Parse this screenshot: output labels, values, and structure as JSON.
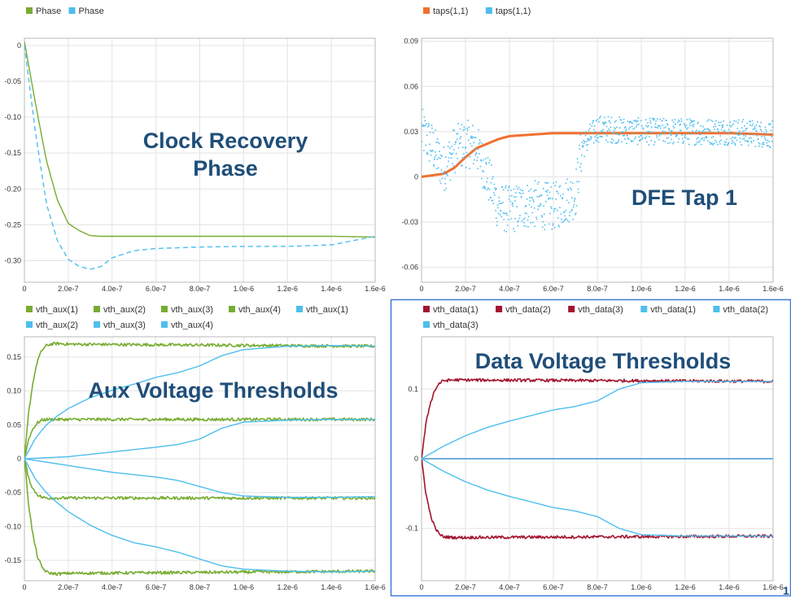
{
  "chart_data": [
    {
      "id": "phase",
      "type": "line",
      "title": "Clock Recovery\nPhase",
      "xlim": [
        0,
        1.6e-06
      ],
      "ylim": [
        -0.33,
        0.01
      ],
      "xticks": [
        0,
        2e-07,
        4e-07,
        6e-07,
        8e-07,
        1e-06,
        1.2e-06,
        1.4e-06,
        1.6e-06
      ],
      "xtick_labels": [
        "0",
        "2.0e-7",
        "4.0e-7",
        "6.0e-7",
        "8.0e-7",
        "1.0e-6",
        "1.2e-6",
        "1.4e-6",
        "1.6e-6"
      ],
      "yticks": [
        0,
        -0.05,
        -0.1,
        -0.15,
        -0.2,
        -0.25,
        -0.3
      ],
      "ytick_labels": [
        "0",
        "-0.05",
        "-0.10",
        "-0.15",
        "-0.20",
        "-0.25",
        "-0.30"
      ],
      "legend": [
        {
          "label": "Phase",
          "color": "#77ac30"
        },
        {
          "label": "Phase",
          "color": "#4dbeee"
        }
      ],
      "series": [
        {
          "name": "Phase",
          "color": "#77ac30",
          "style": "solid",
          "x": [
            0,
            5e-08,
            1e-07,
            1.5e-07,
            2e-07,
            2.5e-07,
            3e-07,
            3.5e-07,
            4e-07,
            6e-07,
            8e-07,
            1e-06,
            1.2e-06,
            1.4e-06,
            1.6e-06
          ],
          "y": [
            0.005,
            -0.08,
            -0.16,
            -0.215,
            -0.248,
            -0.258,
            -0.265,
            -0.266,
            -0.266,
            -0.266,
            -0.266,
            -0.266,
            -0.266,
            -0.266,
            -0.267
          ]
        },
        {
          "name": "Phase",
          "color": "#4dbeee",
          "style": "dashed",
          "x": [
            0,
            5e-08,
            1e-07,
            1.5e-07,
            2e-07,
            2.5e-07,
            3e-07,
            3.5e-07,
            4e-07,
            5e-07,
            6e-07,
            8e-07,
            1e-06,
            1.2e-06,
            1.4e-06,
            1.6e-06
          ],
          "y": [
            0.0,
            -0.12,
            -0.22,
            -0.272,
            -0.298,
            -0.308,
            -0.312,
            -0.308,
            -0.296,
            -0.286,
            -0.283,
            -0.281,
            -0.28,
            -0.28,
            -0.278,
            -0.266
          ]
        }
      ]
    },
    {
      "id": "dfe",
      "type": "scatter",
      "title": "DFE Tap 1",
      "xlim": [
        0,
        1.6e-06
      ],
      "ylim": [
        -0.07,
        0.092
      ],
      "xticks": [
        0,
        2e-07,
        4e-07,
        6e-07,
        8e-07,
        1e-06,
        1.2e-06,
        1.4e-06,
        1.6e-06
      ],
      "xtick_labels": [
        "0",
        "2.0e-7",
        "4.0e-7",
        "6.0e-7",
        "8.0e-7",
        "1.0e-6",
        "1.2e-6",
        "1.4e-6",
        "1.6e-6"
      ],
      "yticks": [
        0.09,
        0.06,
        0.03,
        0,
        -0.03,
        -0.06
      ],
      "ytick_labels": [
        "0.09",
        "0.06",
        "0.03",
        "0",
        "-0.03",
        "-0.06"
      ],
      "legend": [
        {
          "label": "taps(1,1)",
          "color": "#f07030"
        },
        {
          "label": "taps(1,1)",
          "color": "#4dbeee"
        }
      ],
      "series": [
        {
          "name": "taps(1,1)",
          "color": "#f07030",
          "style": "thick",
          "x": [
            0,
            5e-08,
            1e-07,
            1.5e-07,
            2e-07,
            2.5e-07,
            3e-07,
            3.5e-07,
            4e-07,
            5e-07,
            6e-07,
            7e-07,
            8e-07,
            1e-06,
            1.2e-06,
            1.4e-06,
            1.6e-06
          ],
          "y": [
            0.0,
            0.001,
            0.002,
            0.006,
            0.013,
            0.019,
            0.022,
            0.025,
            0.027,
            0.028,
            0.029,
            0.029,
            0.029,
            0.029,
            0.029,
            0.029,
            0.028
          ]
        },
        {
          "name": "taps(1,1)",
          "color": "#4dbeee",
          "style": "dots",
          "x": [
            0,
            5e-08,
            1e-07,
            1.5e-07,
            2e-07,
            2.5e-07,
            3e-07,
            3.5e-07,
            4e-07,
            5e-07,
            6e-07,
            7e-07,
            7.3e-07,
            8e-07,
            1e-06,
            1.2e-06,
            1.4e-06,
            1.6e-06
          ],
          "y": [
            0.03,
            0.02,
            0.005,
            0.018,
            0.022,
            0.02,
            0.0,
            -0.02,
            -0.022,
            -0.018,
            -0.02,
            -0.012,
            0.02,
            0.032,
            0.03,
            0.03,
            0.03,
            0.028
          ]
        }
      ]
    },
    {
      "id": "aux",
      "type": "line",
      "title": "Aux Voltage Thresholds",
      "xlim": [
        0,
        1.6e-06
      ],
      "ylim": [
        -0.18,
        0.18
      ],
      "xticks": [
        0,
        2e-07,
        4e-07,
        6e-07,
        8e-07,
        1e-06,
        1.2e-06,
        1.4e-06,
        1.6e-06
      ],
      "xtick_labels": [
        "0",
        "2.0e-7",
        "4.0e-7",
        "6.0e-7",
        "8.0e-7",
        "1.0e-6",
        "1.2e-6",
        "1.4e-6",
        "1.6e-6"
      ],
      "yticks": [
        0.15,
        0.1,
        0.05,
        0,
        -0.05,
        -0.1,
        -0.15
      ],
      "ytick_labels": [
        "0.15",
        "0.10",
        "0.05",
        "0",
        "-0.05",
        "-0.10",
        "-0.15"
      ],
      "legend": [
        {
          "label": "vth_aux(1)",
          "color": "#77ac30"
        },
        {
          "label": "vth_aux(2)",
          "color": "#77ac30"
        },
        {
          "label": "vth_aux(3)",
          "color": "#77ac30"
        },
        {
          "label": "vth_aux(4)",
          "color": "#77ac30"
        },
        {
          "label": "vth_aux(1)",
          "color": "#4dbeee"
        },
        {
          "label": "vth_aux(2)",
          "color": "#4dbeee"
        },
        {
          "label": "vth_aux(3)",
          "color": "#4dbeee"
        },
        {
          "label": "vth_aux(4)",
          "color": "#4dbeee"
        }
      ],
      "series": [
        {
          "name": "vth_aux(1)",
          "color": "#77ac30",
          "style": "noisy",
          "x": [
            0,
            2e-08,
            4e-08,
            6e-08,
            8e-08,
            1e-07,
            1.2e-07,
            1.5e-07,
            2e-07,
            1.6e-06
          ],
          "y": [
            0,
            0.07,
            0.115,
            0.145,
            0.16,
            0.167,
            0.169,
            0.17,
            0.169,
            0.166
          ]
        },
        {
          "name": "vth_aux(2)",
          "color": "#77ac30",
          "style": "noisy",
          "x": [
            0,
            2e-08,
            4e-08,
            6e-08,
            8e-08,
            1e-07,
            1.5e-07,
            1.6e-06
          ],
          "y": [
            0,
            0.03,
            0.045,
            0.053,
            0.057,
            0.058,
            0.058,
            0.058
          ]
        },
        {
          "name": "vth_aux(3)",
          "color": "#77ac30",
          "style": "noisy",
          "x": [
            0,
            2e-08,
            4e-08,
            6e-08,
            8e-08,
            1e-07,
            1.5e-07,
            1.6e-06
          ],
          "y": [
            0,
            -0.03,
            -0.045,
            -0.053,
            -0.057,
            -0.058,
            -0.058,
            -0.058
          ]
        },
        {
          "name": "vth_aux(4)",
          "color": "#77ac30",
          "style": "noisy",
          "x": [
            0,
            2e-08,
            4e-08,
            6e-08,
            8e-08,
            1e-07,
            1.2e-07,
            1.5e-07,
            2e-07,
            1.6e-06
          ],
          "y": [
            0,
            -0.07,
            -0.115,
            -0.145,
            -0.16,
            -0.167,
            -0.169,
            -0.17,
            -0.169,
            -0.166
          ]
        },
        {
          "name": "vth_aux(1)",
          "color": "#4dbeee",
          "style": "solid",
          "x": [
            0,
            5e-08,
            1e-07,
            1.5e-07,
            2e-07,
            3e-07,
            4e-07,
            5e-07,
            6e-07,
            7e-07,
            8e-07,
            9e-07,
            1e-06,
            1.2e-06,
            1.4e-06,
            1.6e-06
          ],
          "y": [
            0,
            0.03,
            0.05,
            0.063,
            0.074,
            0.09,
            0.101,
            0.11,
            0.12,
            0.127,
            0.137,
            0.152,
            0.161,
            0.166,
            0.167,
            0.166
          ]
        },
        {
          "name": "vth_aux(2)",
          "color": "#4dbeee",
          "style": "solid",
          "x": [
            0,
            2e-07,
            4e-07,
            6e-07,
            7e-07,
            8e-07,
            9e-07,
            1e-06,
            1.2e-06,
            1.4e-06,
            1.6e-06
          ],
          "y": [
            0,
            0.003,
            0.01,
            0.017,
            0.021,
            0.029,
            0.045,
            0.054,
            0.057,
            0.058,
            0.058
          ]
        },
        {
          "name": "vth_aux(3)",
          "color": "#4dbeee",
          "style": "solid",
          "x": [
            0,
            2e-07,
            4e-07,
            6e-07,
            7e-07,
            8e-07,
            9e-07,
            1e-06,
            1.2e-06,
            1.4e-06,
            1.6e-06
          ],
          "y": [
            0,
            -0.01,
            -0.02,
            -0.027,
            -0.032,
            -0.041,
            -0.05,
            -0.055,
            -0.057,
            -0.057,
            -0.056
          ]
        },
        {
          "name": "vth_aux(4)",
          "color": "#4dbeee",
          "style": "solid",
          "x": [
            0,
            5e-08,
            1e-07,
            1.5e-07,
            2e-07,
            3e-07,
            4e-07,
            5e-07,
            6e-07,
            7e-07,
            8e-07,
            9e-07,
            1e-06,
            1.2e-06,
            1.4e-06,
            1.6e-06
          ],
          "y": [
            0,
            -0.03,
            -0.05,
            -0.065,
            -0.078,
            -0.098,
            -0.113,
            -0.124,
            -0.13,
            -0.138,
            -0.148,
            -0.158,
            -0.163,
            -0.166,
            -0.167,
            -0.166
          ]
        }
      ]
    },
    {
      "id": "data",
      "type": "line",
      "title": "Data Voltage Thresholds",
      "xlim": [
        0,
        1.6e-06
      ],
      "ylim": [
        -0.175,
        0.175
      ],
      "xticks": [
        0,
        2e-07,
        4e-07,
        6e-07,
        8e-07,
        1e-06,
        1.2e-06,
        1.4e-06,
        1.6e-06
      ],
      "xtick_labels": [
        "0",
        "2.0e-7",
        "4.0e-7",
        "6.0e-7",
        "8.0e-7",
        "1.0e-6",
        "1.2e-6",
        "1.4e-6",
        "1.6e-6"
      ],
      "yticks": [
        0.1,
        0,
        -0.1
      ],
      "ytick_labels": [
        "0.1",
        "0",
        "-0.1"
      ],
      "legend": [
        {
          "label": "vth_data(1)",
          "color": "#a2142f"
        },
        {
          "label": "vth_data(2)",
          "color": "#a2142f"
        },
        {
          "label": "vth_data(3)",
          "color": "#a2142f"
        },
        {
          "label": "vth_data(1)",
          "color": "#4dbeee"
        },
        {
          "label": "vth_data(2)",
          "color": "#4dbeee"
        },
        {
          "label": "vth_data(3)",
          "color": "#4dbeee"
        }
      ],
      "series": [
        {
          "name": "vth_data(1)",
          "color": "#a2142f",
          "style": "noisy",
          "x": [
            0,
            2e-08,
            4e-08,
            6e-08,
            8e-08,
            1e-07,
            1.5e-07,
            1.6e-06
          ],
          "y": [
            0,
            0.05,
            0.08,
            0.098,
            0.108,
            0.112,
            0.113,
            0.111
          ]
        },
        {
          "name": "vth_data(2)",
          "color": "#a2142f",
          "style": "noisy",
          "x": [
            0,
            2e-08,
            4e-08,
            6e-08,
            8e-08,
            1e-07,
            1.5e-07,
            1.6e-06
          ],
          "y": [
            0,
            -0.05,
            -0.08,
            -0.098,
            -0.108,
            -0.112,
            -0.113,
            -0.111
          ]
        },
        {
          "name": "vth_data(3)",
          "color": "#a2142f",
          "style": "solid",
          "x": [
            0,
            1.6e-06
          ],
          "y": [
            0,
            0
          ]
        },
        {
          "name": "vth_data(1)",
          "color": "#4dbeee",
          "style": "solid",
          "x": [
            0,
            1e-07,
            2e-07,
            3e-07,
            4e-07,
            5e-07,
            6e-07,
            7e-07,
            8e-07,
            9e-07,
            1e-06,
            1.2e-06,
            1.6e-06
          ],
          "y": [
            0,
            0.018,
            0.033,
            0.045,
            0.054,
            0.062,
            0.07,
            0.075,
            0.083,
            0.1,
            0.109,
            0.111,
            0.111
          ]
        },
        {
          "name": "vth_data(2)",
          "color": "#4dbeee",
          "style": "solid",
          "x": [
            0,
            1e-07,
            2e-07,
            3e-07,
            4e-07,
            5e-07,
            6e-07,
            7e-07,
            8e-07,
            9e-07,
            1e-06,
            1.2e-06,
            1.6e-06
          ],
          "y": [
            0,
            -0.018,
            -0.033,
            -0.045,
            -0.054,
            -0.062,
            -0.07,
            -0.075,
            -0.083,
            -0.1,
            -0.109,
            -0.111,
            -0.111
          ]
        },
        {
          "name": "vth_data(3)",
          "color": "#4dbeee",
          "style": "solid",
          "x": [
            0,
            1.6e-06
          ],
          "y": [
            0,
            0
          ]
        }
      ]
    }
  ],
  "page_number": "1"
}
